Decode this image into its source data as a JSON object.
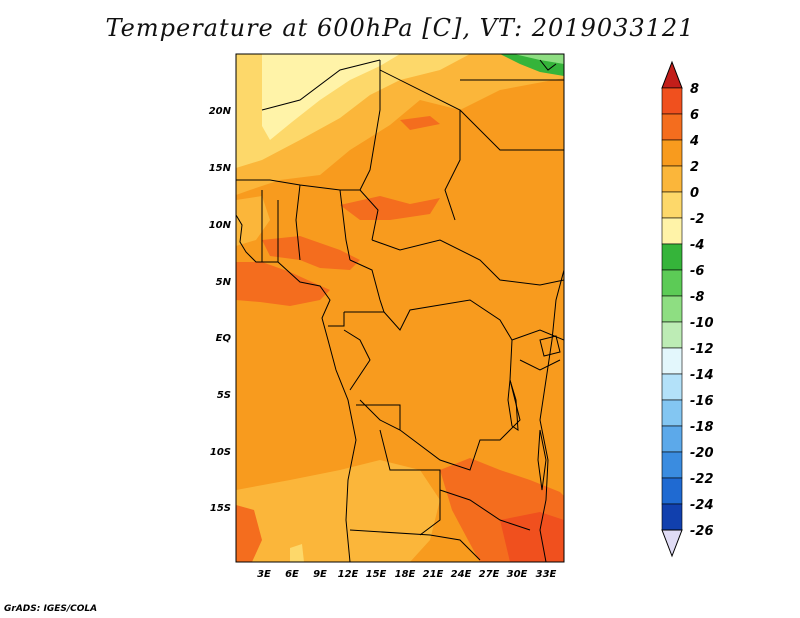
{
  "title": "Temperature at 600hPa [C], VT: 2019033121",
  "credit": "GrADS: IGES/COLA",
  "lat_labels": [
    "20N",
    "15N",
    "10N",
    "5N",
    "EQ",
    "5S",
    "10S",
    "15S"
  ],
  "lon_labels": [
    "3E",
    "6E",
    "9E",
    "12E",
    "15E",
    "18E",
    "21E",
    "24E",
    "27E",
    "30E",
    "33E"
  ],
  "colorbar": {
    "labels": [
      "8",
      "6",
      "4",
      "2",
      "0",
      "-2",
      "-4",
      "-6",
      "-8",
      "-10",
      "-12",
      "-14",
      "-16",
      "-18",
      "-20",
      "-22",
      "-24",
      "-26"
    ],
    "colors": [
      "#d7261e",
      "#f0501e",
      "#f46d1e",
      "#f89b1e",
      "#fbb63a",
      "#fdd86a",
      "#fff3a8",
      "#35b43a",
      "#5ccb56",
      "#8ede82",
      "#bdecb5",
      "#e3f7fc",
      "#b3e1f9",
      "#83c6f2",
      "#5ca9ea",
      "#3a8ce0",
      "#1f6ad2",
      "#1140ae",
      "#0b1a70"
    ],
    "top_color": "#c21e1a",
    "bottom_color": "#e0dcf5"
  },
  "colors": {
    "base_orange": "#f89b1e",
    "warm": "#f46d1e",
    "light_orange": "#fbb63a",
    "yellow": "#fdd86a",
    "pale_yellow": "#fff3a8",
    "green": "#35b43a",
    "border": "#000000"
  }
}
